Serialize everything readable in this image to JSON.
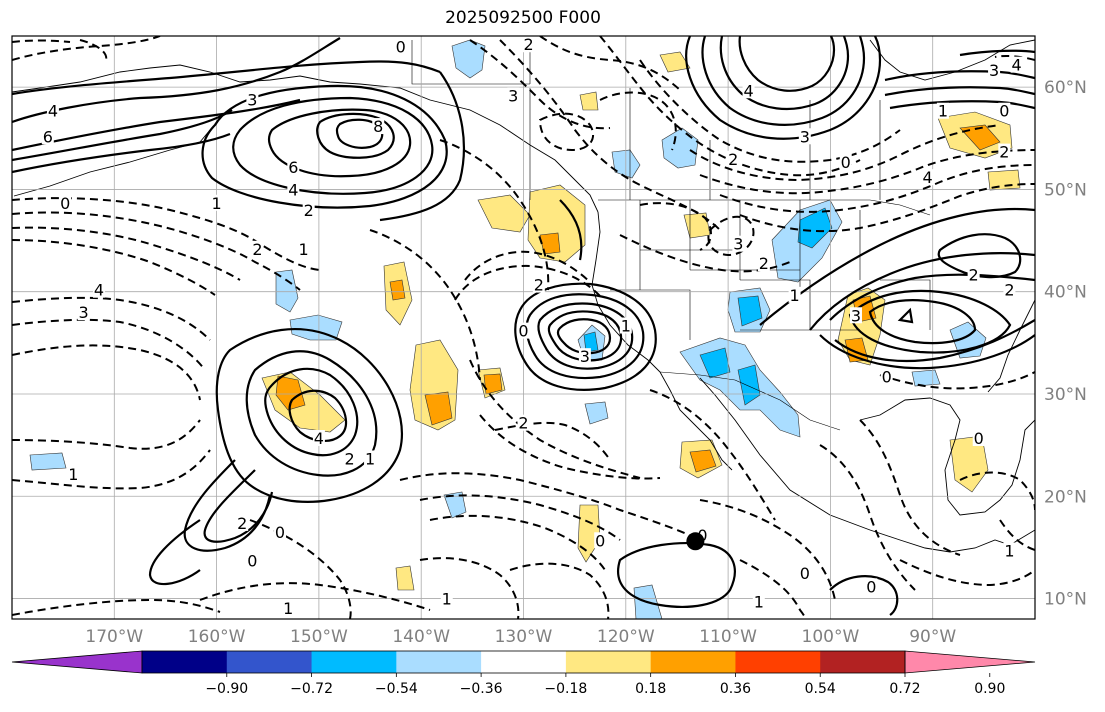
{
  "title": "2025092500 F000",
  "map": {
    "projection": "lat-lon",
    "lon_range": [
      -180,
      -80
    ],
    "lat_range": [
      8,
      65
    ],
    "lon_ticks": [
      {
        "value": -170,
        "label": "170°W"
      },
      {
        "value": -160,
        "label": "160°W"
      },
      {
        "value": -150,
        "label": "150°W"
      },
      {
        "value": -140,
        "label": "140°W"
      },
      {
        "value": -130,
        "label": "130°W"
      },
      {
        "value": -120,
        "label": "120°W"
      },
      {
        "value": -110,
        "label": "110°W"
      },
      {
        "value": -100,
        "label": "100°W"
      },
      {
        "value": -90,
        "label": "90°W"
      }
    ],
    "lat_ticks": [
      {
        "value": 60,
        "label": "60°N"
      },
      {
        "value": 50,
        "label": "50°N"
      },
      {
        "value": 40,
        "label": "40°N"
      },
      {
        "value": 30,
        "label": "30°N"
      },
      {
        "value": 20,
        "label": "20°N"
      },
      {
        "value": 10,
        "label": "10°N"
      }
    ],
    "grid": true,
    "marker": {
      "lon": -113.2,
      "lat": 15.6
    },
    "contour_labels": [
      {
        "text": "0",
        "lon": -142,
        "lat": 63.8
      },
      {
        "text": "3",
        "lon": -156.5,
        "lat": 58.6
      },
      {
        "text": "4",
        "lon": -176,
        "lat": 57.5
      },
      {
        "text": "6",
        "lon": -176.5,
        "lat": 55
      },
      {
        "text": "8",
        "lon": -144.2,
        "lat": 56
      },
      {
        "text": "6",
        "lon": -152.5,
        "lat": 52
      },
      {
        "text": "4",
        "lon": -152.5,
        "lat": 49.8
      },
      {
        "text": "2",
        "lon": -151,
        "lat": 47.8
      },
      {
        "text": "1",
        "lon": -160,
        "lat": 48.5
      },
      {
        "text": "0",
        "lon": -174.8,
        "lat": 48.5
      },
      {
        "text": "2",
        "lon": -156,
        "lat": 44
      },
      {
        "text": "1",
        "lon": -151.5,
        "lat": 44
      },
      {
        "text": "4",
        "lon": -171.5,
        "lat": 40
      },
      {
        "text": "3",
        "lon": -173,
        "lat": 37.8
      },
      {
        "text": "1",
        "lon": -174,
        "lat": 22
      },
      {
        "text": "4",
        "lon": -150,
        "lat": 25.5
      },
      {
        "text": "2",
        "lon": -147,
        "lat": 23.5
      },
      {
        "text": "1",
        "lon": -145,
        "lat": 23.5
      },
      {
        "text": "2",
        "lon": -157.5,
        "lat": 17.2
      },
      {
        "text": "0",
        "lon": -153.8,
        "lat": 16.3
      },
      {
        "text": "0",
        "lon": -156.5,
        "lat": 13.5
      },
      {
        "text": "1",
        "lon": -153,
        "lat": 8.9
      },
      {
        "text": "1",
        "lon": -137.5,
        "lat": 9.8
      },
      {
        "text": "0",
        "lon": -130,
        "lat": 36
      },
      {
        "text": "2",
        "lon": -128.5,
        "lat": 40.5
      },
      {
        "text": "3",
        "lon": -124,
        "lat": 33.5
      },
      {
        "text": "1",
        "lon": -120,
        "lat": 36.5
      },
      {
        "text": "3",
        "lon": -131,
        "lat": 59
      },
      {
        "text": "2",
        "lon": -129.5,
        "lat": 64
      },
      {
        "text": "2",
        "lon": -130,
        "lat": 27
      },
      {
        "text": "0",
        "lon": -122.5,
        "lat": 15.5
      },
      {
        "text": "0",
        "lon": -112.5,
        "lat": 16
      },
      {
        "text": "1",
        "lon": -107,
        "lat": 9.5
      },
      {
        "text": "0",
        "lon": -102.5,
        "lat": 12.3
      },
      {
        "text": "0",
        "lon": -96,
        "lat": 11
      },
      {
        "text": "3",
        "lon": -109,
        "lat": 44.5
      },
      {
        "text": "2",
        "lon": -106.5,
        "lat": 42.6
      },
      {
        "text": "1",
        "lon": -103.5,
        "lat": 39.5
      },
      {
        "text": "3",
        "lon": -97.5,
        "lat": 37.5
      },
      {
        "text": "0",
        "lon": -94.5,
        "lat": 31.5
      },
      {
        "text": "4",
        "lon": -108,
        "lat": 59.5
      },
      {
        "text": "3",
        "lon": -102.5,
        "lat": 55
      },
      {
        "text": "2",
        "lon": -109.5,
        "lat": 52.8
      },
      {
        "text": "0",
        "lon": -98.5,
        "lat": 52.5
      },
      {
        "text": "2",
        "lon": -86,
        "lat": 41.5
      },
      {
        "text": "2",
        "lon": -82.5,
        "lat": 40
      },
      {
        "text": "4",
        "lon": -90.5,
        "lat": 51
      },
      {
        "text": "1",
        "lon": -89,
        "lat": 57.5
      },
      {
        "text": "3",
        "lon": -84,
        "lat": 61.5
      },
      {
        "text": "0",
        "lon": -83,
        "lat": 57.5
      },
      {
        "text": "4",
        "lon": -81.8,
        "lat": 62
      },
      {
        "text": "0",
        "lon": -85.5,
        "lat": 25.5
      },
      {
        "text": "1",
        "lon": -82.5,
        "lat": 14.5
      },
      {
        "text": "2",
        "lon": -83,
        "lat": 53.5
      }
    ]
  },
  "colorbar": {
    "colors": [
      "#9933cc",
      "#000088",
      "#3355cc",
      "#00bbff",
      "#aaddff",
      "#ffffff",
      "#ffe882",
      "#ffa000",
      "#ff4000",
      "#b22222",
      "#ff88aa"
    ],
    "tick_labels": [
      "−0.90",
      "−0.72",
      "−0.54",
      "−0.36",
      "−0.18",
      "0.18",
      "0.36",
      "0.54",
      "0.72",
      "0.90"
    ]
  }
}
